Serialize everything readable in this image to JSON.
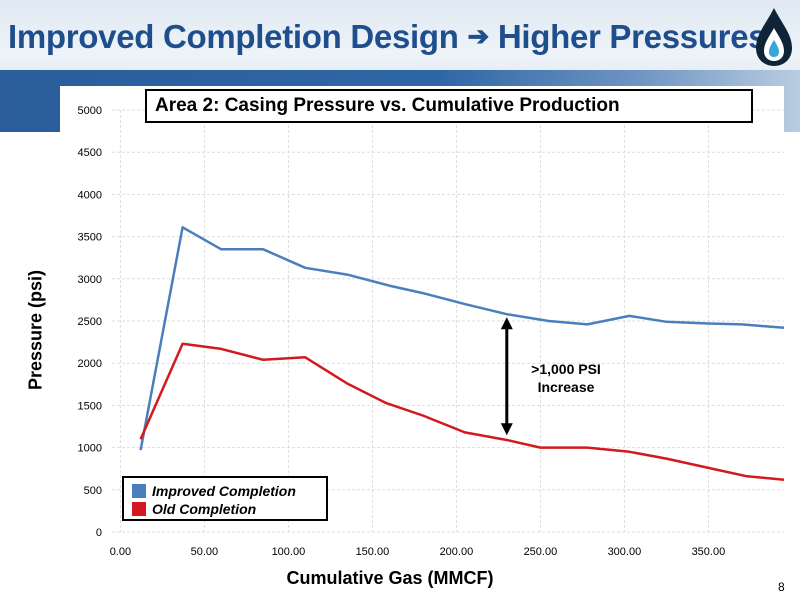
{
  "slide": {
    "title_left": "Improved Completion Design",
    "title_arrow": "➔",
    "title_right": "Higher Pressures",
    "page_number": "8"
  },
  "colors": {
    "improved": "#4a7fbb",
    "old": "#d2191f",
    "title": "#1f4e8c"
  },
  "chart_data": {
    "type": "line",
    "title": "Area 2: Casing Pressure vs. Cumulative Production",
    "xlabel": "Cumulative Gas (MMCF)",
    "ylabel": "Pressure (psi)",
    "xlim": [
      -5,
      395
    ],
    "ylim": [
      0,
      5000
    ],
    "x_ticks": [
      "0.00",
      "50.00",
      "100.00",
      "150.00",
      "200.00",
      "250.00",
      "300.00",
      "350.00"
    ],
    "x_tick_values": [
      0,
      50,
      100,
      150,
      200,
      250,
      300,
      350
    ],
    "y_ticks": [
      "0",
      "500",
      "1000",
      "1500",
      "2000",
      "2500",
      "3000",
      "3500",
      "4000",
      "4500",
      "5000"
    ],
    "y_tick_values": [
      0,
      500,
      1000,
      1500,
      2000,
      2500,
      3000,
      3500,
      4000,
      4500,
      5000
    ],
    "grid": true,
    "legend_position": "bottom-left",
    "series": [
      {
        "name": "Improved Completion",
        "color": "#4a7fbb",
        "x": [
          12,
          37,
          60,
          85,
          110,
          135,
          160,
          180,
          205,
          230,
          255,
          278,
          303,
          325,
          350,
          370,
          395
        ],
        "y": [
          970,
          3610,
          3350,
          3350,
          3130,
          3050,
          2920,
          2830,
          2700,
          2580,
          2500,
          2460,
          2560,
          2490,
          2470,
          2460,
          2420
        ]
      },
      {
        "name": "Old Completion",
        "color": "#d2191f",
        "x": [
          12,
          37,
          60,
          85,
          110,
          135,
          158,
          180,
          205,
          230,
          250,
          278,
          303,
          325,
          350,
          373,
          395
        ],
        "y": [
          1100,
          2230,
          2170,
          2040,
          2070,
          1760,
          1530,
          1380,
          1180,
          1090,
          1000,
          1000,
          950,
          870,
          760,
          660,
          620
        ]
      }
    ],
    "annotation": {
      "line1": ">1,000 PSI",
      "line2": "Increase",
      "arrow_x": 230,
      "arrow_from": 2520,
      "arrow_to": 1170
    }
  }
}
